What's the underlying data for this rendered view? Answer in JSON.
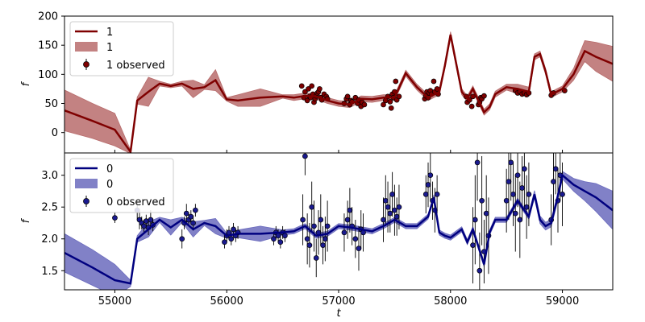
{
  "figure": {
    "xlabel": "t",
    "xticks": [
      55000,
      56000,
      57000,
      58000,
      59000
    ],
    "xlim": [
      54550,
      59450
    ]
  },
  "chart_data": [
    {
      "type": "line",
      "panel": "top",
      "ylabel": "f",
      "ylim": [
        -35,
        200
      ],
      "yticks": [
        0,
        50,
        100,
        150,
        200
      ],
      "color_line": "#7f0000",
      "color_band": "#b86c6c",
      "color_points": "#7f0000",
      "legend": {
        "position": "top-left",
        "line": "1",
        "band": "1",
        "observed": "1 observed"
      },
      "model_x": [
        54550,
        54800,
        55000,
        55140,
        55200,
        55300,
        55400,
        55500,
        55600,
        55700,
        55800,
        55900,
        56000,
        56100,
        56300,
        56500,
        56600,
        56700,
        56800,
        56900,
        57000,
        57100,
        57200,
        57300,
        57400,
        57500,
        57600,
        57700,
        57800,
        57850,
        57900,
        57950,
        58000,
        58100,
        58150,
        58200,
        58300,
        58350,
        58400,
        58500,
        58600,
        58700,
        58750,
        58800,
        58850,
        58900,
        58950,
        59000,
        59100,
        59200,
        59300,
        59450
      ],
      "model_y": [
        38,
        20,
        5,
        -33,
        55,
        70,
        84,
        80,
        84,
        75,
        78,
        90,
        57,
        55,
        60,
        62,
        60,
        63,
        62,
        55,
        50,
        48,
        58,
        57,
        60,
        60,
        102,
        78,
        60,
        65,
        70,
        115,
        168,
        70,
        58,
        75,
        35,
        44,
        66,
        78,
        75,
        70,
        130,
        135,
        105,
        65,
        70,
        75,
        100,
        140,
        130,
        118
      ],
      "band_half_width": [
        35,
        30,
        28,
        3,
        6,
        25,
        4,
        3,
        4,
        15,
        4,
        18,
        3,
        10,
        15,
        3,
        5,
        5,
        5,
        5,
        5,
        5,
        5,
        5,
        5,
        5,
        5,
        5,
        5,
        5,
        5,
        5,
        5,
        5,
        5,
        5,
        5,
        5,
        5,
        5,
        8,
        8,
        5,
        5,
        5,
        5,
        5,
        5,
        10,
        18,
        25,
        30
      ],
      "observed": {
        "x": [
          56670,
          56690,
          56700,
          56720,
          56730,
          56740,
          56750,
          56760,
          56770,
          56780,
          56790,
          56800,
          56810,
          56820,
          56830,
          56840,
          56850,
          56870,
          56890,
          56900,
          57050,
          57070,
          57080,
          57100,
          57110,
          57120,
          57150,
          57170,
          57180,
          57200,
          57210,
          57230,
          57400,
          57420,
          57440,
          57460,
          57470,
          57480,
          57490,
          57500,
          57510,
          57520,
          57540,
          57770,
          57780,
          57790,
          57800,
          57810,
          57820,
          57830,
          57850,
          57860,
          57880,
          57890,
          58140,
          58150,
          58170,
          58190,
          58200,
          58250,
          58260,
          58270,
          58280,
          58300,
          58580,
          58600,
          58620,
          58640,
          58660,
          58680,
          58700,
          58900,
          58920,
          59020
        ],
        "y": [
          80,
          60,
          70,
          55,
          75,
          62,
          60,
          80,
          66,
          52,
          58,
          63,
          68,
          70,
          75,
          60,
          56,
          66,
          62,
          58,
          50,
          58,
          62,
          48,
          55,
          53,
          60,
          50,
          56,
          45,
          52,
          48,
          48,
          55,
          62,
          53,
          42,
          66,
          60,
          70,
          88,
          56,
          62,
          58,
          63,
          70,
          60,
          68,
          72,
          66,
          88,
          70,
          75,
          66,
          62,
          52,
          56,
          45,
          62,
          48,
          52,
          60,
          58,
          63,
          72,
          68,
          70,
          66,
          68,
          65,
          68,
          64,
          68,
          72
        ]
      }
    },
    {
      "type": "line",
      "panel": "bottom",
      "ylabel": "f",
      "ylim": [
        1.2,
        3.35
      ],
      "yticks": [
        1.5,
        2.0,
        2.5,
        3.0
      ],
      "color_line": "#00007f",
      "color_band": "#6b6bbd",
      "color_points": "#1a1a8f",
      "legend": {
        "position": "top-left",
        "line": "0",
        "band": "0",
        "observed": "0 observed"
      },
      "model_x": [
        54550,
        54800,
        55000,
        55140,
        55200,
        55300,
        55400,
        55500,
        55600,
        55700,
        55800,
        55900,
        56000,
        56100,
        56300,
        56500,
        56600,
        56700,
        56800,
        56900,
        57000,
        57100,
        57200,
        57300,
        57400,
        57500,
        57600,
        57700,
        57800,
        57850,
        57900,
        57950,
        58000,
        58100,
        58150,
        58200,
        58300,
        58350,
        58400,
        58500,
        58600,
        58700,
        58750,
        58800,
        58850,
        58900,
        58950,
        59000,
        59100,
        59200,
        59300,
        59450
      ],
      "model_y": [
        1.78,
        1.55,
        1.35,
        1.3,
        2.0,
        2.15,
        2.3,
        2.18,
        2.3,
        2.15,
        2.25,
        2.2,
        2.05,
        2.08,
        2.08,
        2.1,
        2.12,
        2.2,
        2.05,
        2.08,
        2.2,
        2.18,
        2.15,
        2.12,
        2.2,
        2.3,
        2.2,
        2.2,
        2.35,
        2.65,
        2.1,
        2.05,
        2.02,
        2.15,
        1.95,
        2.15,
        1.6,
        2.1,
        2.3,
        2.3,
        2.6,
        2.35,
        2.7,
        2.3,
        2.2,
        2.25,
        2.6,
        3.0,
        2.85,
        2.75,
        2.65,
        2.45
      ],
      "band_half_width": [
        0.3,
        0.28,
        0.25,
        0.05,
        0.05,
        0.12,
        0.04,
        0.12,
        0.04,
        0.12,
        0.04,
        0.12,
        0.04,
        0.06,
        0.12,
        0.04,
        0.04,
        0.04,
        0.04,
        0.04,
        0.04,
        0.04,
        0.04,
        0.04,
        0.04,
        0.04,
        0.04,
        0.04,
        0.04,
        0.04,
        0.04,
        0.04,
        0.04,
        0.04,
        0.04,
        0.04,
        0.04,
        0.04,
        0.04,
        0.04,
        0.04,
        0.04,
        0.06,
        0.06,
        0.06,
        0.06,
        0.06,
        0.06,
        0.1,
        0.15,
        0.22,
        0.3
      ],
      "observed": {
        "x": [
          55000,
          55200,
          55220,
          55240,
          55260,
          55280,
          55300,
          55320,
          55340,
          55600,
          55620,
          55640,
          55660,
          55680,
          55700,
          55720,
          55980,
          56000,
          56020,
          56040,
          56060,
          56080,
          56100,
          56420,
          56440,
          56460,
          56480,
          56500,
          56520,
          56680,
          56700,
          56720,
          56740,
          56760,
          56780,
          56800,
          56820,
          56840,
          56860,
          56880,
          56900,
          57050,
          57080,
          57100,
          57120,
          57150,
          57180,
          57200,
          57220,
          57400,
          57420,
          57440,
          57460,
          57480,
          57500,
          57520,
          57540,
          57780,
          57800,
          57820,
          57840,
          57860,
          57880,
          58200,
          58220,
          58240,
          58260,
          58280,
          58300,
          58320,
          58340,
          58500,
          58520,
          58540,
          58560,
          58580,
          58600,
          58620,
          58640,
          58660,
          58680,
          58700,
          58900,
          58920,
          58940,
          58960,
          58980,
          59000
        ],
        "y": [
          2.33,
          2.45,
          2.3,
          2.25,
          2.2,
          2.28,
          2.18,
          2.3,
          2.22,
          2.0,
          2.25,
          2.4,
          2.3,
          2.35,
          2.25,
          2.45,
          1.95,
          2.05,
          2.1,
          2.0,
          2.15,
          2.05,
          2.1,
          2.0,
          2.1,
          2.05,
          1.95,
          2.1,
          2.05,
          2.3,
          3.3,
          2.0,
          1.9,
          2.5,
          2.2,
          1.7,
          2.1,
          2.3,
          1.9,
          2.0,
          2.2,
          2.1,
          2.3,
          2.45,
          2.2,
          2.0,
          1.85,
          2.15,
          2.1,
          2.3,
          2.6,
          2.5,
          2.4,
          2.7,
          2.45,
          2.35,
          2.5,
          2.7,
          2.85,
          3.0,
          2.6,
          2.45,
          2.7,
          1.9,
          2.3,
          3.2,
          1.5,
          2.6,
          1.8,
          2.4,
          2.05,
          2.6,
          2.9,
          3.2,
          2.7,
          2.4,
          3.0,
          2.3,
          2.8,
          3.1,
          2.5,
          2.7,
          2.3,
          2.9,
          3.1,
          2.6,
          3.0,
          2.7
        ],
        "yerr": [
          0.08,
          0.15,
          0.15,
          0.1,
          0.1,
          0.1,
          0.12,
          0.15,
          0.1,
          0.15,
          0.1,
          0.15,
          0.1,
          0.1,
          0.12,
          0.1,
          0.1,
          0.1,
          0.1,
          0.1,
          0.1,
          0.1,
          0.1,
          0.1,
          0.1,
          0.1,
          0.1,
          0.1,
          0.1,
          0.4,
          0.3,
          0.4,
          0.35,
          0.4,
          0.4,
          0.3,
          0.35,
          0.4,
          0.3,
          0.35,
          0.4,
          0.3,
          0.3,
          0.35,
          0.3,
          0.3,
          0.35,
          0.3,
          0.3,
          0.35,
          0.4,
          0.4,
          0.3,
          0.35,
          0.4,
          0.3,
          0.35,
          0.3,
          0.35,
          0.4,
          0.3,
          0.35,
          0.3,
          0.6,
          0.7,
          0.6,
          0.6,
          0.7,
          0.5,
          0.6,
          0.6,
          0.5,
          0.6,
          0.6,
          0.5,
          0.6,
          0.5,
          0.6,
          0.5,
          0.6,
          0.5,
          0.5,
          0.4,
          0.5,
          0.4,
          0.5,
          0.4,
          0.5
        ]
      }
    }
  ]
}
